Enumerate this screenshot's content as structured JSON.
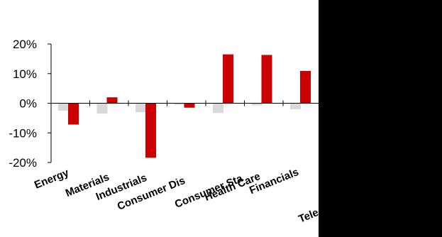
{
  "chart_data": {
    "type": "bar",
    "categories": [
      "Energy",
      "Materials",
      "Industrials",
      "Consumer Dis",
      "Consumer Sta",
      "Health Care",
      "Financials",
      "Tele"
    ],
    "series": [
      {
        "values": [
          -2.5,
          -3.5,
          -3.0,
          -0.5,
          -3.3,
          -0.7,
          -2.0,
          null
        ],
        "color": "#d9d9d9"
      },
      {
        "values": [
          -7.2,
          2.0,
          -18.4,
          -1.5,
          16.5,
          16.3,
          10.9,
          null
        ],
        "color": "#cc0000"
      }
    ],
    "ylim": [
      -20,
      20
    ],
    "yticks": [
      20,
      10,
      0,
      -10,
      -20
    ],
    "ytick_labels": [
      "20%",
      "10%",
      "0%",
      "-10%",
      "-20%"
    ],
    "grid": false,
    "occluder_color": "#000000"
  }
}
